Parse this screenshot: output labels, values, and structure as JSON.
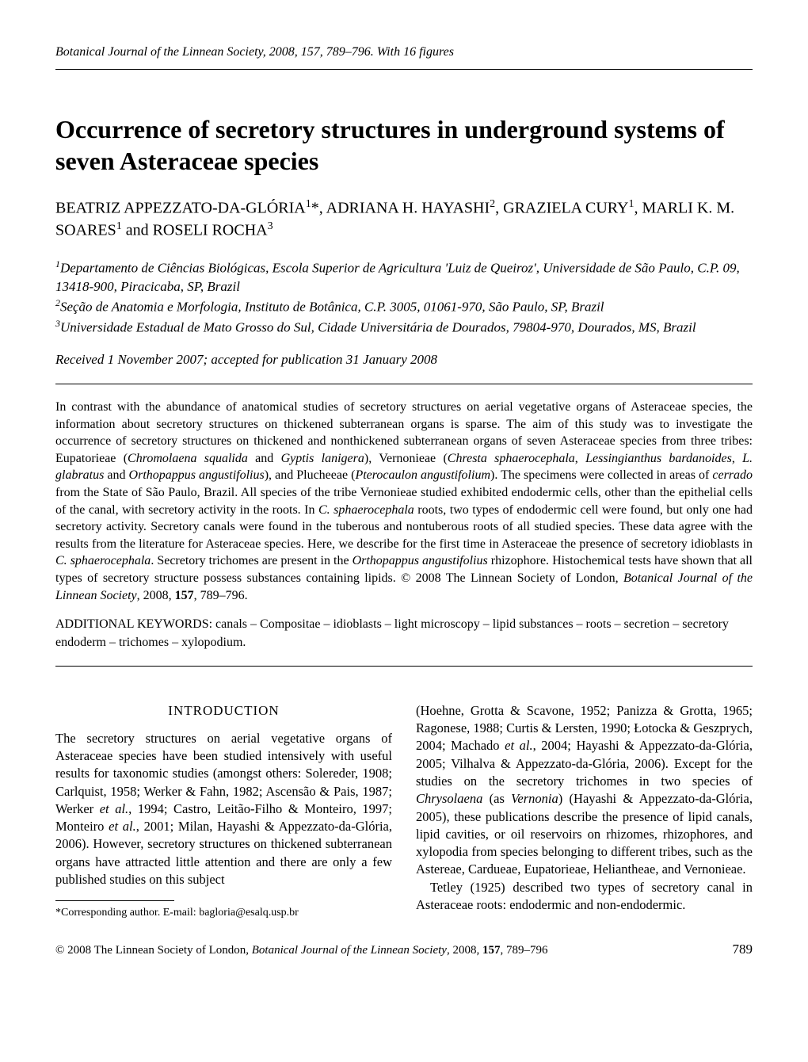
{
  "journal_header": "Botanical Journal of the Linnean Society, 2008, 157, 789–796. With 16 figures",
  "title": "Occurrence of secretory structures in underground systems of seven Asteraceae species",
  "authors_html": "BEATRIZ APPEZZATO-DA-GLÓRIA<sup>1</sup>*, ADRIANA H. HAYASHI<sup>2</sup>, GRAZIELA CURY<sup>1</sup>, MARLI K. M. SOARES<sup>1</sup> and ROSELI ROCHA<sup>3</sup>",
  "affiliations_html": "<sup>1</sup>Departamento de Ciências Biológicas, Escola Superior de Agricultura 'Luiz de Queiroz', Universidade de São Paulo, C.P. 09, 13418-900, Piracicaba, SP, Brazil<br><sup>2</sup>Seção de Anatomia e Morfologia, Instituto de Botânica, C.P. 3005, 01061-970, São Paulo, SP, Brazil<br><sup>3</sup>Universidade Estadual de Mato Grosso do Sul, Cidade Universitária de Dourados, 79804-970, Dourados, MS, Brazil",
  "received": "Received 1 November 2007; accepted for publication 31 January 2008",
  "abstract_html": "In contrast with the abundance of anatomical studies of secretory structures on aerial vegetative organs of Asteraceae species, the information about secretory structures on thickened subterranean organs is sparse. The aim of this study was to investigate the occurrence of secretory structures on thickened and nonthickened subterranean organs of seven Asteraceae species from three tribes: Eupatorieae (<i>Chromolaena squalida</i> and <i>Gyptis lanigera</i>), Vernonieae (<i>Chresta sphaerocephala</i>, <i>Lessingianthus bardanoides</i>, <i>L. glabratus</i> and <i>Orthopappus angustifolius</i>), and Plucheeae (<i>Pterocaulon angustifolium</i>). The specimens were collected in areas of <i>cerrado</i> from the State of São Paulo, Brazil. All species of the tribe Vernonieae studied exhibited endodermic cells, other than the epithelial cells of the canal, with secretory activity in the roots. In <i>C. sphaerocephala</i> roots, two types of endodermic cell were found, but only one had secretory activity. Secretory canals were found in the tuberous and nontuberous roots of all studied species. These data agree with the results from the literature for Asteraceae species. Here, we describe for the first time in Asteraceae the presence of secretory idioblasts in <i>C. sphaerocephala</i>. Secretory trichomes are present in the <i>Orthopappus angustifolius</i> rhizophore. Histochemical tests have shown that all types of secretory structure possess substances containing lipids. © 2008 The Linnean Society of London, <i>Botanical Journal of the Linnean Society</i>, 2008, <b>157</b>, 789–796.",
  "keywords": "ADDITIONAL KEYWORDS: canals – Compositae – idioblasts – light microscopy – lipid substances – roots – secretion – secretory endoderm – trichomes – xylopodium.",
  "section_heading": "INTRODUCTION",
  "column1_html": "The secretory structures on aerial vegetative organs of Asteraceae species have been studied intensively with useful results for taxonomic studies (amongst others: Solereder, 1908; Carlquist, 1958; Werker & Fahn, 1982; Ascensão & Pais, 1987; Werker <i>et al.</i>, 1994; Castro, Leitão-Filho & Monteiro, 1997; Monteiro <i>et al.</i>, 2001; Milan, Hayashi & Appezzato-da-Glória, 2006). However, secretory structures on thickened subterranean organs have attracted little attention and there are only a few published studies on this subject",
  "column2_para1_html": "(Hoehne, Grotta & Scavone, 1952; Panizza & Grotta, 1965; Ragonese, 1988; Curtis & Lersten, 1990; Łotocka & Geszprych, 2004; Machado <i>et al.</i>, 2004; Hayashi & Appezzato-da-Glória, 2005; Vilhalva & Appezzato-da-Glória, 2006). Except for the studies on the secretory trichomes in two species of <i>Chrysolaena</i> (as <i>Vernonia</i>) (Hayashi & Appezzato-da-Glória, 2005), these publications describe the presence of lipid canals, lipid cavities, or oil reservoirs on rhizomes, rhizophores, and xylopodia from species belonging to different tribes, such as the Astereae, Cardueae, Eupatorieae, Heliantheae, and Vernonieae.",
  "column2_para2_html": "Tetley (1925) described two types of secretory canal in Asteraceae roots: endodermic and non-endodermic.",
  "footnote": "*Corresponding author. E-mail: bagloria@esalq.usp.br",
  "footer_left_html": "© 2008 The Linnean Society of London, <i>Botanical Journal of the Linnean Society</i>, 2008, <b>157</b>, 789–796",
  "footer_page": "789"
}
